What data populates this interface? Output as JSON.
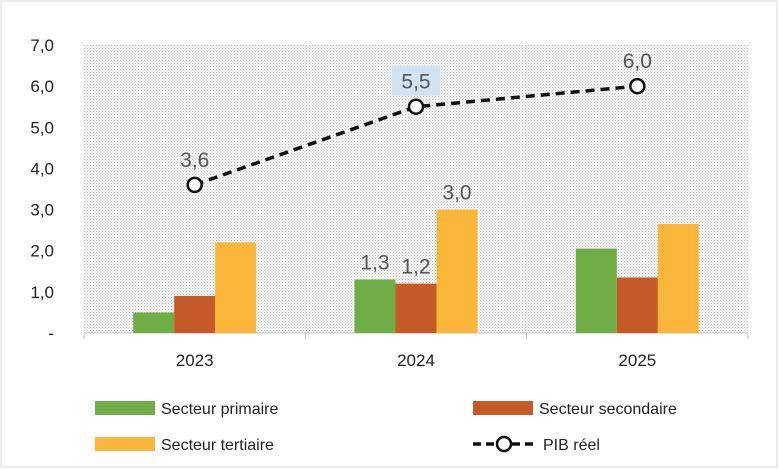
{
  "chart_data": {
    "type": "bar",
    "categories": [
      "2023",
      "2024",
      "2025"
    ],
    "series": [
      {
        "name": "Secteur primaire",
        "type": "bar",
        "color": "#70ad47",
        "values": [
          0.5,
          1.3,
          2.05
        ]
      },
      {
        "name": "Secteur secondaire",
        "type": "bar",
        "color": "#c55a28",
        "values": [
          0.9,
          1.2,
          1.35
        ]
      },
      {
        "name": "Secteur tertiaire",
        "type": "bar",
        "color": "#fbb73c",
        "values": [
          2.2,
          3.0,
          2.65
        ]
      },
      {
        "name": "PIB réel",
        "type": "line",
        "color": "#111111",
        "values": [
          3.6,
          5.5,
          6.0
        ]
      }
    ],
    "ylim": [
      0,
      7
    ],
    "yticks": [
      "-",
      "1,0",
      "2,0",
      "3,0",
      "4,0",
      "5,0",
      "6,0",
      "7,0"
    ],
    "data_labels": [
      {
        "series": "PIB réel",
        "category": "2023",
        "text": "3,6",
        "highlight": false
      },
      {
        "series": "PIB réel",
        "category": "2024",
        "text": "5,5",
        "highlight": true
      },
      {
        "series": "PIB réel",
        "category": "2025",
        "text": "6,0",
        "highlight": false
      },
      {
        "series": "Secteur primaire",
        "category": "2024",
        "text": "1,3",
        "highlight": false
      },
      {
        "series": "Secteur secondaire",
        "category": "2024",
        "text": "1,2",
        "highlight": false
      },
      {
        "series": "Secteur tertiaire",
        "category": "2024",
        "text": "3,0",
        "highlight": false
      }
    ],
    "title": "",
    "xlabel": "",
    "ylabel": "",
    "grid": false,
    "plot_background": "dotted-gray",
    "legend_position": "bottom",
    "highlight_color": "#cfe3f3"
  }
}
